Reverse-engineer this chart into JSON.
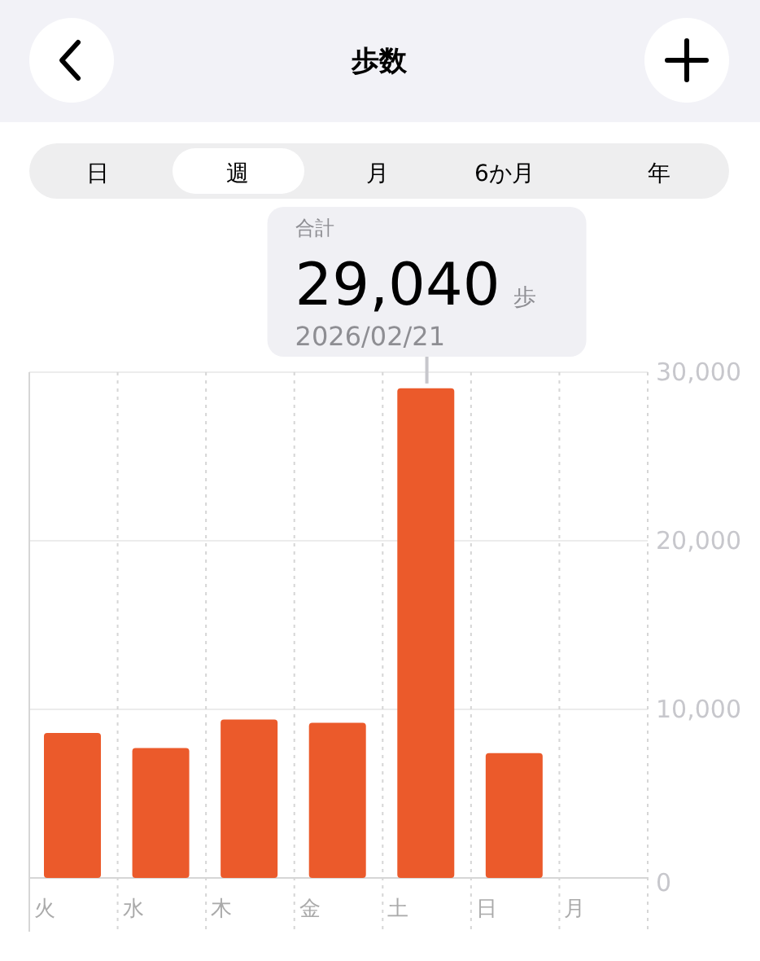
{
  "chart_data": {
    "type": "bar",
    "title": "歩数",
    "categories": [
      "火",
      "水",
      "木",
      "金",
      "土",
      "日",
      "月"
    ],
    "values": [
      8600,
      7700,
      9400,
      9200,
      29040,
      7400,
      null
    ],
    "color": "#eb5a2b",
    "ylim": [
      0,
      30000
    ],
    "yticks": [
      0,
      {
        "value": 10000,
        "label": "10,000"
      },
      {
        "value": 20000,
        "label": "20,000"
      },
      {
        "value": 30000,
        "label": "30,000"
      }
    ],
    "grid": true,
    "annotations": [
      "日",
      "週",
      "月",
      "6か月",
      "年",
      "合計",
      {
        "text": "29,040",
        "x": "土",
        "y": 29040
      },
      "歩",
      "2026/02/21"
    ]
  }
}
